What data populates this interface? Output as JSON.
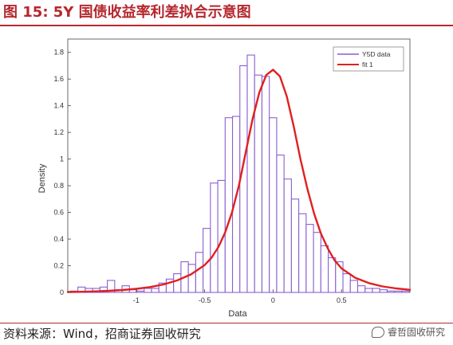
{
  "header": {
    "title": "图 15:  5Y 国债收益率利差拟合示意图"
  },
  "footer": {
    "source": "资料来源：Wind，招商证券固收研究",
    "watermark": "睿哲固收研究"
  },
  "colors": {
    "title": "#b5282e",
    "hist": "#8a5fd0",
    "fit": "#e02020"
  },
  "chart_data": {
    "type": "bar",
    "xlabel": "Data",
    "ylabel": "Density",
    "xlim": [
      -1.5,
      1.0
    ],
    "ylim": [
      0,
      1.9
    ],
    "xticks": [
      -1,
      -0.5,
      0,
      0.5
    ],
    "xtick_labels": [
      "-1",
      "-0.5",
      "0",
      "0.5"
    ],
    "yticks": [
      0,
      0.2,
      0.4,
      0.6,
      0.8,
      1.0,
      1.2,
      1.4,
      1.6,
      1.8
    ],
    "ytick_labels": [
      "0",
      "0.2",
      "0.4",
      "0.6",
      "0.8",
      "1",
      "1.2",
      "1.4",
      "1.6",
      "1.8"
    ],
    "bin_width": 0.0538,
    "series": [
      {
        "name": "Y5D data",
        "type": "histogram",
        "bin_edges_start": -1.48,
        "values": [
          0.01,
          0.04,
          0.03,
          0.03,
          0.04,
          0.09,
          0.02,
          0.05,
          0.02,
          0.01,
          0.03,
          0.03,
          0.07,
          0.1,
          0.14,
          0.23,
          0.21,
          0.3,
          0.48,
          0.82,
          0.84,
          1.31,
          1.32,
          1.7,
          1.78,
          1.63,
          1.62,
          1.31,
          1.03,
          0.85,
          0.7,
          0.59,
          0.51,
          0.45,
          0.35,
          0.26,
          0.23,
          0.14,
          0.09,
          0.05,
          0.03,
          0.03,
          0.02,
          0.01,
          0.01,
          0.01
        ]
      },
      {
        "name": "fit 1",
        "type": "line",
        "x": [
          -1.5,
          -1.4,
          -1.3,
          -1.2,
          -1.1,
          -1.0,
          -0.9,
          -0.8,
          -0.7,
          -0.6,
          -0.5,
          -0.45,
          -0.4,
          -0.35,
          -0.3,
          -0.25,
          -0.2,
          -0.15,
          -0.1,
          -0.05,
          0.0,
          0.05,
          0.1,
          0.15,
          0.2,
          0.25,
          0.3,
          0.35,
          0.4,
          0.45,
          0.5,
          0.6,
          0.7,
          0.8,
          0.9,
          1.0
        ],
        "y": [
          0.003,
          0.005,
          0.008,
          0.012,
          0.018,
          0.027,
          0.04,
          0.06,
          0.09,
          0.135,
          0.205,
          0.26,
          0.34,
          0.45,
          0.6,
          0.8,
          1.05,
          1.3,
          1.5,
          1.63,
          1.67,
          1.62,
          1.47,
          1.25,
          1.0,
          0.78,
          0.59,
          0.44,
          0.33,
          0.24,
          0.18,
          0.11,
          0.07,
          0.045,
          0.03,
          0.02
        ]
      }
    ],
    "legend": {
      "position": "top-right",
      "entries": [
        "Y5D data",
        "fit 1"
      ]
    }
  }
}
